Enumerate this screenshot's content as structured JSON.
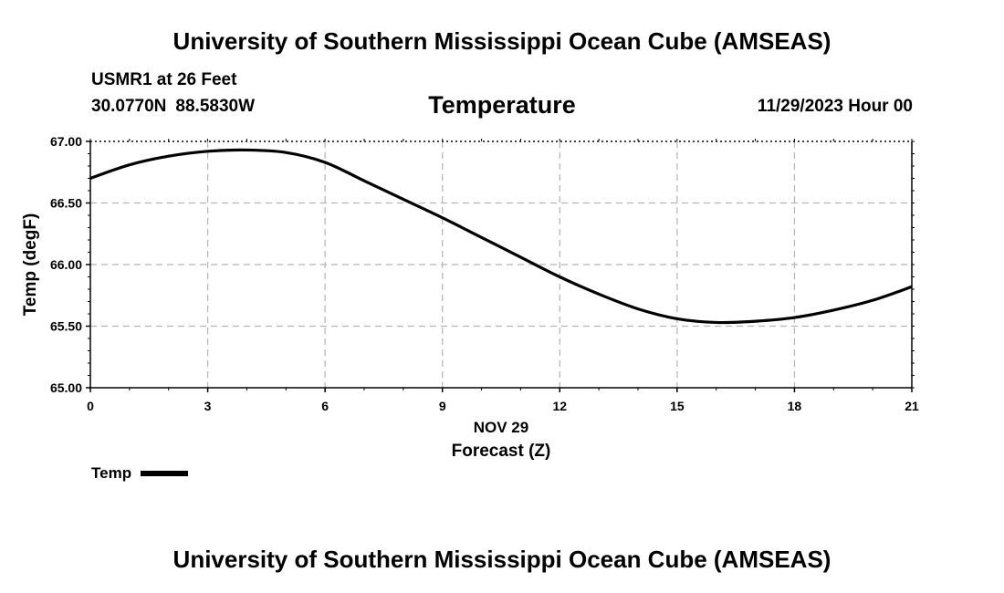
{
  "header": {
    "title_top": "University of Southern Mississippi Ocean Cube (AMSEAS)",
    "station": "USMR1 at 26 Feet",
    "lat": "30.0770N",
    "lon": "88.5830W",
    "chart_title": "Temperature",
    "timestamp": "11/29/2023 Hour 00"
  },
  "footer": {
    "title_bottom": "University of Southern Mississippi Ocean Cube (AMSEAS)"
  },
  "legend": {
    "label": "Temp",
    "color": "#000000"
  },
  "chart_data": {
    "type": "line",
    "title": "Temperature",
    "xlabel": "Forecast (Z)",
    "xlabel_date": "NOV 29",
    "ylabel": "Temp (degF)",
    "xlim": [
      0,
      21
    ],
    "ylim": [
      65.0,
      67.0
    ],
    "xticks": [
      0,
      3,
      6,
      9,
      12,
      15,
      18,
      21
    ],
    "xtick_labels": [
      "0",
      "3",
      "6",
      "9",
      "12",
      "15",
      "18",
      "21"
    ],
    "yticks": [
      65.0,
      65.5,
      66.0,
      66.5,
      67.0
    ],
    "ytick_labels": [
      "65.00",
      "65.50",
      "66.00",
      "66.50",
      "67.00"
    ],
    "grid": true,
    "series": [
      {
        "name": "Temp",
        "color": "#000000",
        "x": [
          0,
          1,
          2,
          3,
          4,
          5,
          6,
          7,
          8,
          9,
          10,
          11,
          12,
          13,
          14,
          15,
          16,
          17,
          18,
          19,
          20,
          21
        ],
        "values": [
          66.7,
          66.81,
          66.88,
          66.92,
          66.93,
          66.91,
          66.83,
          66.68,
          66.53,
          66.38,
          66.22,
          66.06,
          65.9,
          65.76,
          65.64,
          65.56,
          65.53,
          65.54,
          65.57,
          65.63,
          65.71,
          65.82
        ]
      }
    ]
  }
}
